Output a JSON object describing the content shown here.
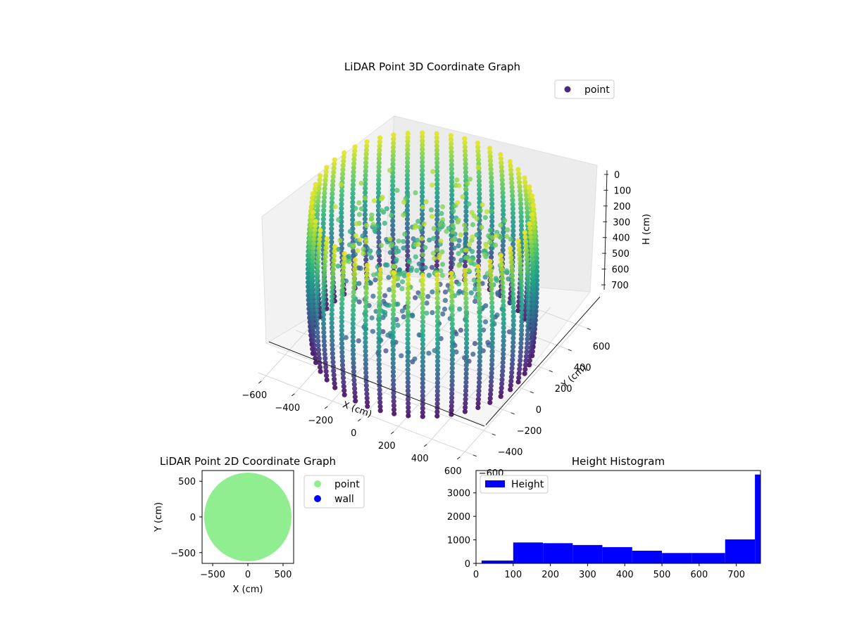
{
  "chart_data": [
    {
      "type": "scatter",
      "projection": "3d",
      "title": "LiDAR Point 3D Coordinate Graph",
      "xlabel": "X (cm)",
      "ylabel": "Y (cm)",
      "zlabel": "H (cm)",
      "xticks": [
        "−600",
        "−400",
        "−200",
        "0",
        "200",
        "400",
        "600"
      ],
      "yticks": [
        "600",
        "400",
        "200",
        "0",
        "−200",
        "−400",
        "−600"
      ],
      "zticks": [
        "0",
        "100",
        "200",
        "300",
        "400",
        "500",
        "600",
        "700"
      ],
      "xlim": [
        -650,
        650
      ],
      "ylim": [
        -650,
        650
      ],
      "zlim": [
        0,
        760
      ],
      "z_inverted": true,
      "colormap": "viridis",
      "wall_radius": 600,
      "wall_columns": 48,
      "legend": [
        {
          "label": "point",
          "color": "#472c7a"
        }
      ],
      "legend_position": "upper right",
      "grid": true
    },
    {
      "type": "scatter",
      "title": "LiDAR Point 2D Coordinate Graph",
      "xlabel": "X (cm)",
      "ylabel": "Y (cm)",
      "xticks": [
        "−500",
        "0",
        "500"
      ],
      "yticks": [
        "500",
        "0",
        "−500"
      ],
      "xlim": [
        -650,
        650
      ],
      "ylim": [
        -650,
        650
      ],
      "point_radius": 620,
      "series": [
        {
          "name": "point",
          "color": "#90ee90"
        },
        {
          "name": "wall",
          "color": "#0000ff"
        }
      ],
      "legend_position": "outside right"
    },
    {
      "type": "bar",
      "title": "Height Histogram",
      "xlabel": "",
      "ylabel": "",
      "xticks": [
        "0",
        "100",
        "200",
        "300",
        "400",
        "500",
        "600",
        "700"
      ],
      "yticks": [
        "0",
        "1000",
        "2000",
        "3000"
      ],
      "xlim": [
        0,
        765
      ],
      "ylim": [
        0,
        3950
      ],
      "bins": [
        {
          "x0": 15,
          "x1": 100,
          "count": 120
        },
        {
          "x0": 100,
          "x1": 180,
          "count": 890
        },
        {
          "x0": 180,
          "x1": 260,
          "count": 860
        },
        {
          "x0": 260,
          "x1": 340,
          "count": 780
        },
        {
          "x0": 340,
          "x1": 420,
          "count": 690
        },
        {
          "x0": 420,
          "x1": 500,
          "count": 540
        },
        {
          "x0": 500,
          "x1": 580,
          "count": 440
        },
        {
          "x0": 580,
          "x1": 670,
          "count": 440
        },
        {
          "x0": 670,
          "x1": 750,
          "count": 1020
        },
        {
          "x0": 750,
          "x1": 765,
          "count": 3780
        }
      ],
      "series": [
        {
          "name": "Height",
          "color": "#0000ff"
        }
      ],
      "legend_position": "upper left"
    }
  ]
}
